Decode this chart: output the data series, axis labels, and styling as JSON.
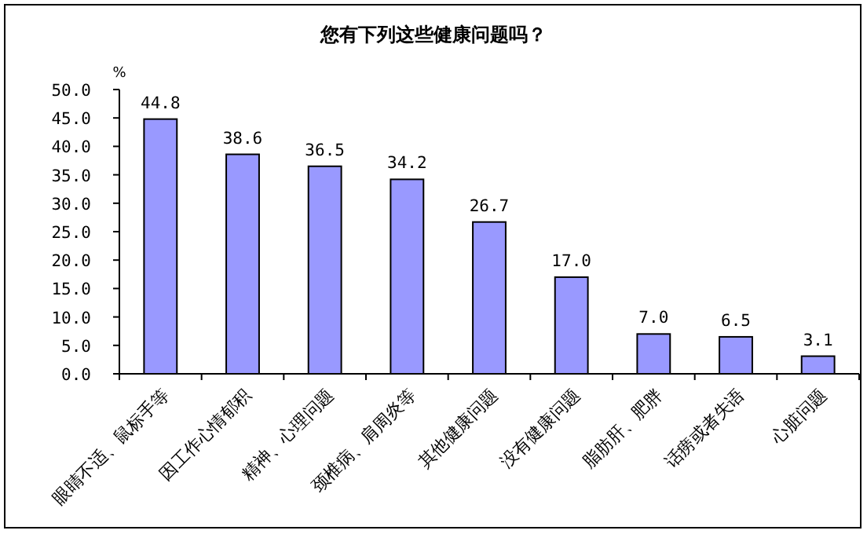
{
  "chart_data": {
    "type": "bar",
    "title": "您有下列这些健康问题吗？",
    "ylabel": "%",
    "categories": [
      "眼睛不适、鼠标手等",
      "因工作心情郁积",
      "精神、心理问题",
      "颈椎病、肩周炎等",
      "其他健康问题",
      "没有健康问题",
      "脂肪肝、肥胖",
      "话痨或者失语",
      "心脏问题"
    ],
    "values": [
      44.8,
      38.6,
      36.5,
      34.2,
      26.7,
      17.0,
      7.0,
      6.5,
      3.1
    ],
    "value_labels": [
      "44.8",
      "38.6",
      "36.5",
      "34.2",
      "26.7",
      "17.0",
      "7.0",
      "6.5",
      "3.1"
    ],
    "color": "#9999ff",
    "ylim": [
      0,
      50
    ],
    "yticks": [
      {
        "value": 0,
        "label": "0.0"
      },
      {
        "value": 5,
        "label": "5.0"
      },
      {
        "value": 10,
        "label": "10.0"
      },
      {
        "value": 15,
        "label": "15.0"
      },
      {
        "value": 20,
        "label": "20.0"
      },
      {
        "value": 25,
        "label": "25.0"
      },
      {
        "value": 30,
        "label": "30.0"
      },
      {
        "value": 35,
        "label": "35.0"
      },
      {
        "value": 40,
        "label": "40.0"
      },
      {
        "value": 45,
        "label": "45.0"
      },
      {
        "value": 50,
        "label": "50.0"
      }
    ],
    "grid": false
  }
}
